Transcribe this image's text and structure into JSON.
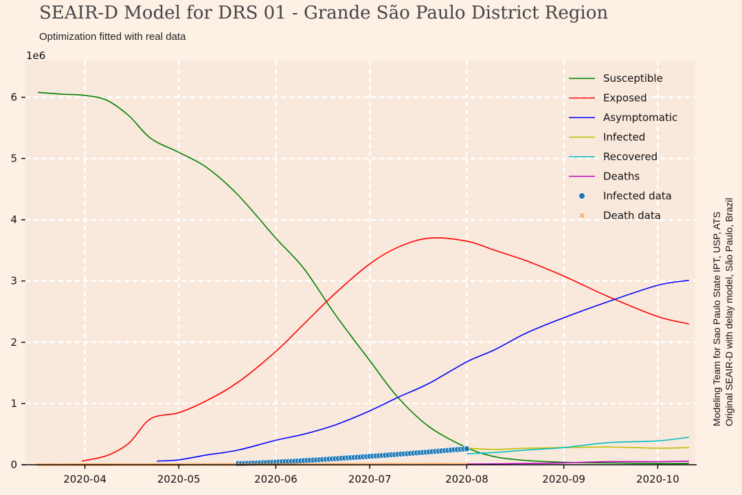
{
  "title": "SEAIR-D Model for DRS 01 - Grande São Paulo District Region",
  "subtitle": "Optimization fitted with real data",
  "side_note": [
    "Modeling Team for Sao Paulo State IPT, USP, ATS",
    "Original SEAIR-D with delay model, São Paulo, Brazil"
  ],
  "colors": {
    "background": "#fdf1e6",
    "plot_bg": "#f9e8dc",
    "grid": "#ffffff",
    "Susceptible": "#008000",
    "Exposed": "#ff0000",
    "Asymptomatic": "#0000ff",
    "Infected": "#bfbf00",
    "Recovered": "#00bfbf",
    "Deaths": "#bf00bf",
    "Infected data": "#1f77b4",
    "Death data": "#ff7f0e"
  },
  "chart_data": {
    "type": "line",
    "title": "SEAIR-D Model for DRS 01 - Grande São Paulo District Region",
    "subtitle": "Optimization fitted with real data",
    "y_scale_label": "1e6",
    "ylim": [
      0,
      6.6
    ],
    "xlim": [
      "2020-03-13",
      "2020-10-13"
    ],
    "x_ticks": [
      "2020-04",
      "2020-05",
      "2020-06",
      "2020-07",
      "2020-08",
      "2020-09",
      "2020-10"
    ],
    "y_ticks": [
      "0",
      "1",
      "2",
      "3",
      "4",
      "5",
      "6"
    ],
    "grid": true,
    "legend_position": "top-right",
    "series": [
      {
        "name": "Susceptible",
        "style": "line",
        "points": [
          [
            "2020-03-17",
            6.08
          ],
          [
            "2020-03-25",
            6.05
          ],
          [
            "2020-04-01",
            6.03
          ],
          [
            "2020-04-08",
            5.95
          ],
          [
            "2020-04-15",
            5.7
          ],
          [
            "2020-04-22",
            5.33
          ],
          [
            "2020-05-01",
            5.1
          ],
          [
            "2020-05-10",
            4.85
          ],
          [
            "2020-05-20",
            4.4
          ],
          [
            "2020-06-01",
            3.7
          ],
          [
            "2020-06-10",
            3.2
          ],
          [
            "2020-06-20",
            2.45
          ],
          [
            "2020-07-01",
            1.7
          ],
          [
            "2020-07-10",
            1.1
          ],
          [
            "2020-07-20",
            0.62
          ],
          [
            "2020-08-01",
            0.28
          ],
          [
            "2020-08-10",
            0.13
          ],
          [
            "2020-08-20",
            0.07
          ],
          [
            "2020-09-01",
            0.04
          ],
          [
            "2020-09-15",
            0.03
          ],
          [
            "2020-10-01",
            0.02
          ],
          [
            "2020-10-11",
            0.02
          ]
        ]
      },
      {
        "name": "Exposed",
        "style": "line",
        "points": [
          [
            "2020-03-31",
            0.06
          ],
          [
            "2020-04-08",
            0.15
          ],
          [
            "2020-04-15",
            0.35
          ],
          [
            "2020-04-22",
            0.75
          ],
          [
            "2020-05-01",
            0.85
          ],
          [
            "2020-05-10",
            1.05
          ],
          [
            "2020-05-20",
            1.35
          ],
          [
            "2020-06-01",
            1.85
          ],
          [
            "2020-06-10",
            2.3
          ],
          [
            "2020-06-20",
            2.8
          ],
          [
            "2020-07-01",
            3.28
          ],
          [
            "2020-07-10",
            3.55
          ],
          [
            "2020-07-20",
            3.7
          ],
          [
            "2020-08-01",
            3.65
          ],
          [
            "2020-08-10",
            3.5
          ],
          [
            "2020-08-20",
            3.33
          ],
          [
            "2020-09-01",
            3.08
          ],
          [
            "2020-09-15",
            2.75
          ],
          [
            "2020-10-01",
            2.42
          ],
          [
            "2020-10-11",
            2.3
          ]
        ]
      },
      {
        "name": "Asymptomatic",
        "style": "line",
        "points": [
          [
            "2020-04-24",
            0.06
          ],
          [
            "2020-05-01",
            0.08
          ],
          [
            "2020-05-10",
            0.16
          ],
          [
            "2020-05-20",
            0.24
          ],
          [
            "2020-06-01",
            0.4
          ],
          [
            "2020-06-10",
            0.5
          ],
          [
            "2020-06-20",
            0.65
          ],
          [
            "2020-07-01",
            0.88
          ],
          [
            "2020-07-10",
            1.1
          ],
          [
            "2020-07-20",
            1.33
          ],
          [
            "2020-08-01",
            1.68
          ],
          [
            "2020-08-10",
            1.88
          ],
          [
            "2020-08-20",
            2.15
          ],
          [
            "2020-09-01",
            2.4
          ],
          [
            "2020-09-15",
            2.66
          ],
          [
            "2020-10-01",
            2.93
          ],
          [
            "2020-10-11",
            3.01
          ]
        ]
      },
      {
        "name": "Infected",
        "style": "line",
        "points": [
          [
            "2020-08-01",
            0.27
          ],
          [
            "2020-08-10",
            0.25
          ],
          [
            "2020-08-20",
            0.27
          ],
          [
            "2020-09-01",
            0.28
          ],
          [
            "2020-09-15",
            0.29
          ],
          [
            "2020-10-01",
            0.27
          ],
          [
            "2020-10-11",
            0.28
          ]
        ]
      },
      {
        "name": "Recovered",
        "style": "line",
        "points": [
          [
            "2020-08-01",
            0.18
          ],
          [
            "2020-08-10",
            0.2
          ],
          [
            "2020-08-20",
            0.24
          ],
          [
            "2020-09-01",
            0.28
          ],
          [
            "2020-09-15",
            0.36
          ],
          [
            "2020-10-01",
            0.39
          ],
          [
            "2020-10-11",
            0.45
          ]
        ]
      },
      {
        "name": "Deaths",
        "style": "line",
        "points": [
          [
            "2020-08-01",
            0.01
          ],
          [
            "2020-08-20",
            0.02
          ],
          [
            "2020-09-01",
            0.03
          ],
          [
            "2020-09-15",
            0.05
          ],
          [
            "2020-10-01",
            0.05
          ],
          [
            "2020-10-11",
            0.06
          ]
        ]
      },
      {
        "name": "Infected data",
        "style": "scatter",
        "x_start": "2020-05-20",
        "x_end": "2020-08-01",
        "y_start": 0.02,
        "y_end": 0.26,
        "count": 74
      },
      {
        "name": "Death data",
        "style": "scatter",
        "x_start": "2020-03-17",
        "x_end": "2020-08-01",
        "y_start": 0.0,
        "y_end": 0.01,
        "count": 138
      }
    ]
  }
}
